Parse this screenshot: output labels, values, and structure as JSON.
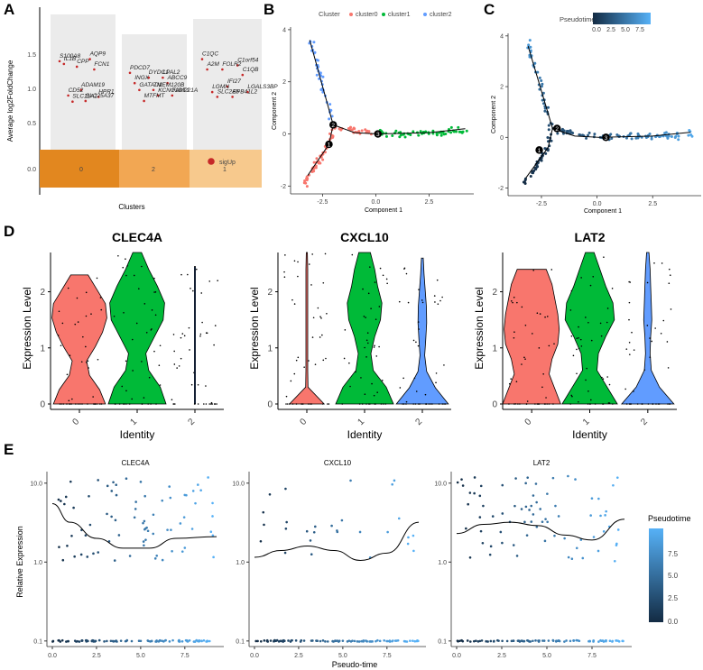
{
  "panel_labels": [
    "A",
    "B",
    "C",
    "D",
    "E"
  ],
  "chart_data": [
    {
      "id": "A",
      "type": "scatter",
      "title": "",
      "xlabel": "Clusters",
      "ylabel": "Average log2FoldChange",
      "ylim": [
        -0.35,
        1.95
      ],
      "yticks": [
        "0.0",
        "0.5",
        "1.0",
        "1.5"
      ],
      "ytick_values": [
        0,
        0.5,
        1,
        1.5
      ],
      "clusters": [
        {
          "name": "0",
          "color": "#E2871F",
          "genes": [
            {
              "g": "S100A8",
              "v": 1.62
            },
            {
              "g": "AQP9",
              "v": 1.65
            },
            {
              "g": "CPP",
              "v": 1.54
            },
            {
              "g": "IL1B",
              "v": 1.58
            },
            {
              "g": "FCN1",
              "v": 1.5
            },
            {
              "g": "ADAM19",
              "v": 1.2
            },
            {
              "g": "CD52",
              "v": 1.12
            },
            {
              "g": "HPR1",
              "v": 1.1
            },
            {
              "g": "SLC25A37",
              "v": 1.04
            },
            {
              "g": "SLC11A1",
              "v": 1.03
            }
          ]
        },
        {
          "name": "2",
          "color": "#F2A753",
          "genes": [
            {
              "g": "PDCD7",
              "v": 1.45
            },
            {
              "g": "LPAL2",
              "v": 1.38
            },
            {
              "g": "DYDC1",
              "v": 1.38
            },
            {
              "g": "INGX",
              "v": 1.3
            },
            {
              "g": "ABCC9",
              "v": 1.3
            },
            {
              "g": "TMEM120B",
              "v": 1.2
            },
            {
              "g": "GATAD1",
              "v": 1.2
            },
            {
              "g": "FAM221A",
              "v": 1.12
            },
            {
              "g": "KCNO1DT1",
              "v": 1.12
            },
            {
              "g": "MTFMT",
              "v": 1.04
            }
          ]
        },
        {
          "name": "1",
          "color": "#F7C98D",
          "genes": [
            {
              "g": "C1QC",
              "v": 1.65
            },
            {
              "g": "C1orf54",
              "v": 1.56
            },
            {
              "g": "FOLR2",
              "v": 1.5
            },
            {
              "g": "A2M",
              "v": 1.5
            },
            {
              "g": "C1QB",
              "v": 1.42
            },
            {
              "g": "IFI27",
              "v": 1.25
            },
            {
              "g": "LGMN",
              "v": 1.17
            },
            {
              "g": "LGALS3BP",
              "v": 1.17
            },
            {
              "g": "EPB41L2",
              "v": 1.1
            },
            {
              "g": "SLC2A5",
              "v": 1.1
            }
          ]
        }
      ],
      "legend": "sigUp",
      "legend_color": "#C62828"
    },
    {
      "id": "B",
      "type": "scatter",
      "legend_title": "Cluster",
      "legend_items": [
        {
          "name": "cluster0",
          "color": "#F8766D"
        },
        {
          "name": "cluster1",
          "color": "#00BA38"
        },
        {
          "name": "cluster2",
          "color": "#619CFF"
        }
      ],
      "xlabel": "Component 1",
      "ylabel": "Component 2",
      "xlim": [
        -4.0,
        4.6
      ],
      "ylim": [
        -2.3,
        4.1
      ],
      "xticks": [
        -2.5,
        0,
        2.5
      ],
      "xtick_labels": [
        "-2.5",
        "0.0",
        "2.5"
      ],
      "yticks": [
        -2,
        0,
        2,
        4
      ],
      "ytick_labels": [
        "-2",
        "0",
        "2",
        "4"
      ],
      "branch_nodes": [
        {
          "id": "1",
          "x": -2.2,
          "y": -0.4
        },
        {
          "id": "2",
          "x": -2.0,
          "y": 0.35
        },
        {
          "id": "3",
          "x": 0.1,
          "y": 0
        }
      ],
      "tree_edges": [
        [
          [
            -3.2,
            -1.6
          ],
          [
            -2.2,
            -0.4
          ]
        ],
        [
          [
            -2.2,
            -0.4
          ],
          [
            -2.0,
            0.35
          ]
        ],
        [
          [
            -2.0,
            0.35
          ],
          [
            -3.1,
            3.6
          ]
        ],
        [
          [
            -2.0,
            0.35
          ],
          [
            -1.0,
            0.05
          ],
          [
            0.1,
            0
          ]
        ],
        [
          [
            0.1,
            0
          ],
          [
            2.5,
            0.05
          ],
          [
            4.2,
            0.2
          ]
        ]
      ]
    },
    {
      "id": "C",
      "type": "scatter",
      "legend_title": "Pseudotime",
      "legend_ticks": [
        "0.0",
        "2.5",
        "5.0",
        "7.5"
      ],
      "xlabel": "Component 1",
      "ylabel": "Component 2",
      "xticks": [
        -2.5,
        0,
        2.5
      ],
      "xtick_labels": [
        "-2.5",
        "0.0",
        "2.5"
      ],
      "yticks": [
        -2,
        0,
        2,
        4
      ],
      "ytick_labels": [
        "-2",
        "0",
        "2",
        "4"
      ],
      "branch_nodes": [
        {
          "id": "1",
          "x": -2.6,
          "y": -0.5
        },
        {
          "id": "2",
          "x": -1.8,
          "y": 0.35
        },
        {
          "id": "3",
          "x": 0.4,
          "y": 0
        }
      ]
    },
    {
      "id": "D",
      "type": "violin",
      "panels": [
        {
          "title": "CLEC4A",
          "ylim": [
            0,
            2.7
          ],
          "yticks": [
            0,
            1,
            2
          ]
        },
        {
          "title": "CXCL10",
          "ylim": [
            0,
            2.7
          ],
          "yticks": [
            0,
            1,
            2
          ]
        },
        {
          "title": "LAT2",
          "ylim": [
            0,
            2.7
          ],
          "yticks": [
            0,
            1,
            2
          ]
        }
      ],
      "identities": [
        "0",
        "1",
        "2"
      ],
      "colors": [
        "#F8766D",
        "#00BA38",
        "#619CFF"
      ],
      "xlabel": "Identity",
      "ylabel": "Expression Level"
    },
    {
      "id": "E",
      "type": "scatter",
      "panels": [
        {
          "title": "CLEC4A",
          "trend": [
            [
              0,
              5.5
            ],
            [
              1,
              3.2
            ],
            [
              2.5,
              2.0
            ],
            [
              4,
              1.5
            ],
            [
              5.5,
              1.5
            ],
            [
              7,
              2.0
            ],
            [
              9.3,
              2.1
            ]
          ]
        },
        {
          "title": "CXCL10",
          "trend": [
            [
              0,
              1.15
            ],
            [
              1.5,
              1.4
            ],
            [
              3,
              1.6
            ],
            [
              4.5,
              1.4
            ],
            [
              6,
              1.05
            ],
            [
              7.5,
              1.3
            ],
            [
              9.3,
              3.2
            ]
          ]
        },
        {
          "title": "LAT2",
          "trend": [
            [
              0,
              2.3
            ],
            [
              1.5,
              3.0
            ],
            [
              3,
              3.2
            ],
            [
              4.5,
              2.9
            ],
            [
              6,
              2.2
            ],
            [
              7.5,
              1.9
            ],
            [
              9.3,
              3.5
            ]
          ]
        }
      ],
      "xlabel": "Pseudo-time",
      "ylabel": "Relative Expression",
      "xticks": [
        "0.0",
        "2.5",
        "5.0",
        "7.5"
      ],
      "ytick_labels": [
        "0.1",
        "1.0",
        "10.0"
      ],
      "legend_title": "Pseudotime",
      "legend_ticks": [
        "0.0",
        "2.5",
        "5.0",
        "7.5"
      ]
    }
  ]
}
